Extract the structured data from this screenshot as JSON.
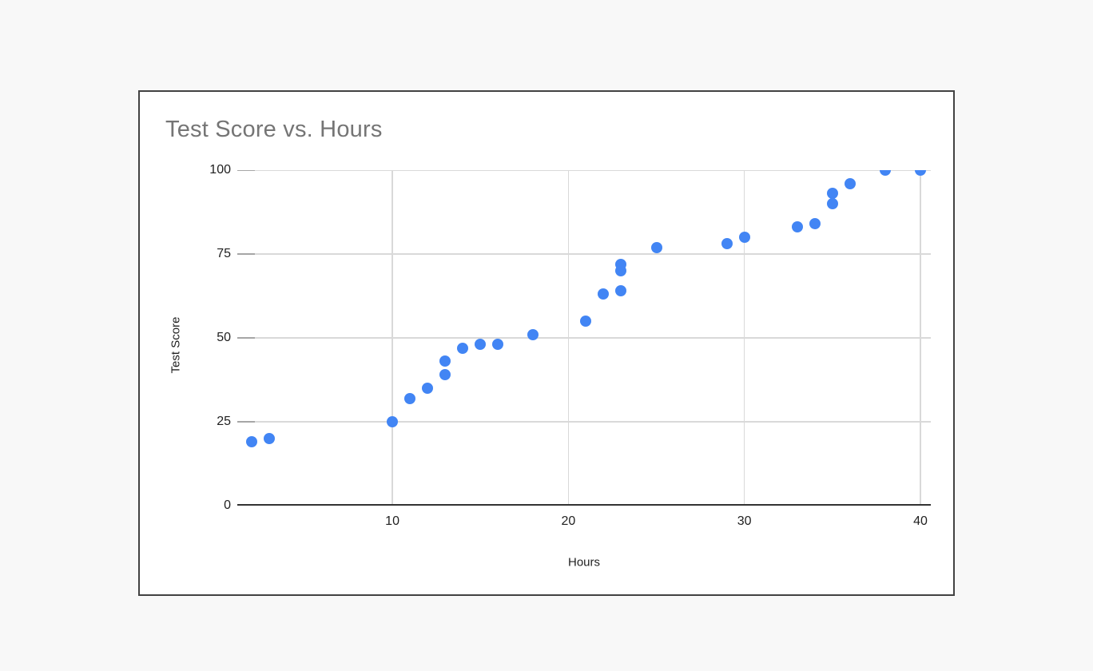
{
  "window": {
    "description": "Embedded spreadsheet-style scatter chart card on light gray desktop"
  },
  "colors": {
    "page_bg": "#f8f8f8",
    "card_bg": "#ffffff",
    "card_border": "#424242",
    "title_text": "#757575",
    "label_text": "#1f1f1f",
    "gridline": "#d9d9d9",
    "tick": "#a6a6a6",
    "axis_line": "#333333",
    "point": "#4285f4"
  },
  "chart_data": {
    "type": "scatter",
    "title": "Test Score vs. Hours",
    "xlabel": "Hours",
    "ylabel": "Test Score",
    "xlim": [
      1.19,
      40.59
    ],
    "ylim": [
      0,
      100
    ],
    "x_ticks": [
      10,
      20,
      30,
      40
    ],
    "x_tick_labels": [
      "10",
      "20",
      "30",
      "40"
    ],
    "y_ticks": [
      0,
      25,
      50,
      75,
      100
    ],
    "y_tick_labels": [
      "0",
      "25",
      "50",
      "75",
      "100"
    ],
    "grid": true,
    "legend": "none",
    "points": [
      {
        "hours": 2,
        "score": 19
      },
      {
        "hours": 3,
        "score": 20
      },
      {
        "hours": 10,
        "score": 25
      },
      {
        "hours": 11,
        "score": 32
      },
      {
        "hours": 12,
        "score": 35
      },
      {
        "hours": 13,
        "score": 39
      },
      {
        "hours": 13,
        "score": 43
      },
      {
        "hours": 14,
        "score": 47
      },
      {
        "hours": 15,
        "score": 48
      },
      {
        "hours": 16,
        "score": 48
      },
      {
        "hours": 18,
        "score": 51
      },
      {
        "hours": 21,
        "score": 55
      },
      {
        "hours": 22,
        "score": 63
      },
      {
        "hours": 23,
        "score": 64
      },
      {
        "hours": 23,
        "score": 70
      },
      {
        "hours": 23,
        "score": 72
      },
      {
        "hours": 25,
        "score": 77
      },
      {
        "hours": 29,
        "score": 78
      },
      {
        "hours": 30,
        "score": 80
      },
      {
        "hours": 33,
        "score": 83
      },
      {
        "hours": 34,
        "score": 84
      },
      {
        "hours": 35,
        "score": 90
      },
      {
        "hours": 35,
        "score": 93
      },
      {
        "hours": 36,
        "score": 96
      },
      {
        "hours": 38,
        "score": 100
      },
      {
        "hours": 40,
        "score": 100
      }
    ]
  }
}
